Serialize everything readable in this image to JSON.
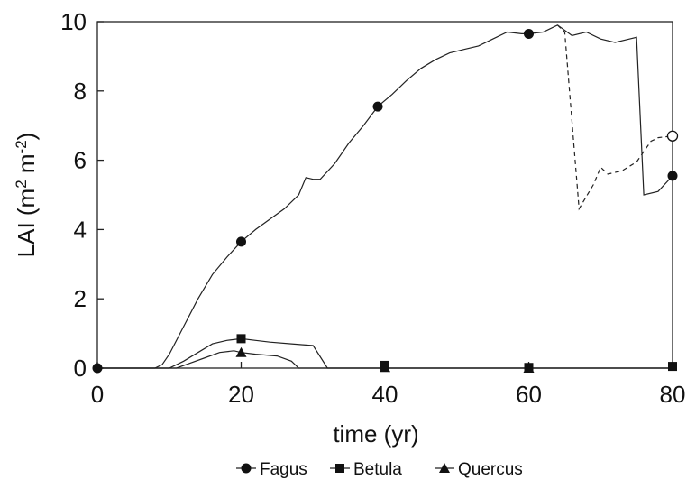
{
  "chart_data": {
    "type": "line",
    "title": "",
    "xlabel": "time (yr)",
    "ylabel": "LAI (m2 m-2)",
    "ylabel_parts": {
      "base": "LAI (m",
      "sup1": "2",
      "mid": " m",
      "sup2": "-2",
      "end": ")"
    },
    "xlim": [
      0,
      80
    ],
    "ylim": [
      0,
      10
    ],
    "xticks": [
      0,
      20,
      40,
      60,
      80
    ],
    "yticks": [
      0,
      2,
      4,
      6,
      8,
      10
    ],
    "grid": false,
    "legend_placement": "bottom",
    "series": [
      {
        "name": "Fagus",
        "marker": "circle",
        "style": "solid",
        "points": [
          [
            0,
            0
          ],
          [
            8,
            0
          ],
          [
            9,
            0.1
          ],
          [
            10,
            0.4
          ],
          [
            12,
            1.2
          ],
          [
            14,
            2.0
          ],
          [
            16,
            2.7
          ],
          [
            18,
            3.2
          ],
          [
            20,
            3.65
          ],
          [
            22,
            4.0
          ],
          [
            24,
            4.3
          ],
          [
            26,
            4.6
          ],
          [
            28,
            5.0
          ],
          [
            29,
            5.5
          ],
          [
            30,
            5.45
          ],
          [
            31,
            5.45
          ],
          [
            33,
            5.9
          ],
          [
            35,
            6.5
          ],
          [
            37,
            7.0
          ],
          [
            39,
            7.55
          ],
          [
            41,
            7.9
          ],
          [
            43,
            8.3
          ],
          [
            45,
            8.65
          ],
          [
            47,
            8.9
          ],
          [
            49,
            9.1
          ],
          [
            51,
            9.2
          ],
          [
            53,
            9.3
          ],
          [
            55,
            9.5
          ],
          [
            57,
            9.7
          ],
          [
            59,
            9.65
          ],
          [
            60,
            9.65
          ],
          [
            62,
            9.7
          ],
          [
            64,
            9.9
          ],
          [
            66,
            9.6
          ],
          [
            68,
            9.7
          ],
          [
            70,
            9.5
          ],
          [
            72,
            9.4
          ],
          [
            74,
            9.5
          ],
          [
            75,
            9.55
          ],
          [
            76,
            5.0
          ],
          [
            78,
            5.1
          ],
          [
            80,
            5.55
          ]
        ],
        "marker_points": [
          [
            0,
            0
          ],
          [
            20,
            3.65
          ],
          [
            39,
            7.55
          ],
          [
            60,
            9.65
          ],
          [
            80,
            5.55
          ]
        ]
      },
      {
        "name": "",
        "marker": "open-circle",
        "style": "dashed",
        "points": [
          [
            64,
            9.9
          ],
          [
            65,
            9.7
          ],
          [
            67,
            4.6
          ],
          [
            69,
            5.3
          ],
          [
            70,
            5.8
          ],
          [
            71,
            5.6
          ],
          [
            73,
            5.7
          ],
          [
            75,
            5.95
          ],
          [
            77,
            6.55
          ],
          [
            78,
            6.65
          ],
          [
            80,
            6.7
          ]
        ],
        "marker_points": [
          [
            80,
            6.7
          ]
        ]
      },
      {
        "name": "Betula",
        "marker": "square",
        "style": "solid",
        "points": [
          [
            0,
            0
          ],
          [
            10,
            0
          ],
          [
            12,
            0.2
          ],
          [
            14,
            0.45
          ],
          [
            16,
            0.7
          ],
          [
            18,
            0.8
          ],
          [
            20,
            0.85
          ],
          [
            22,
            0.8
          ],
          [
            24,
            0.75
          ],
          [
            27,
            0.7
          ],
          [
            30,
            0.65
          ],
          [
            32,
            0
          ],
          [
            80,
            0
          ]
        ],
        "marker_points": [
          [
            20,
            0.85
          ],
          [
            40,
            0.08
          ],
          [
            60,
            0.02
          ],
          [
            80,
            0.05
          ]
        ]
      },
      {
        "name": "Quercus",
        "marker": "triangle",
        "style": "solid",
        "points": [
          [
            0,
            0
          ],
          [
            11,
            0
          ],
          [
            13,
            0.15
          ],
          [
            15,
            0.3
          ],
          [
            17,
            0.45
          ],
          [
            19,
            0.5
          ],
          [
            20,
            0.45
          ],
          [
            22,
            0.4
          ],
          [
            25,
            0.35
          ],
          [
            27,
            0.2
          ],
          [
            28,
            0
          ],
          [
            80,
            0
          ]
        ],
        "marker_points": [
          [
            20,
            0.45
          ],
          [
            40,
            0.02
          ],
          [
            60,
            0.0
          ]
        ]
      }
    ]
  }
}
